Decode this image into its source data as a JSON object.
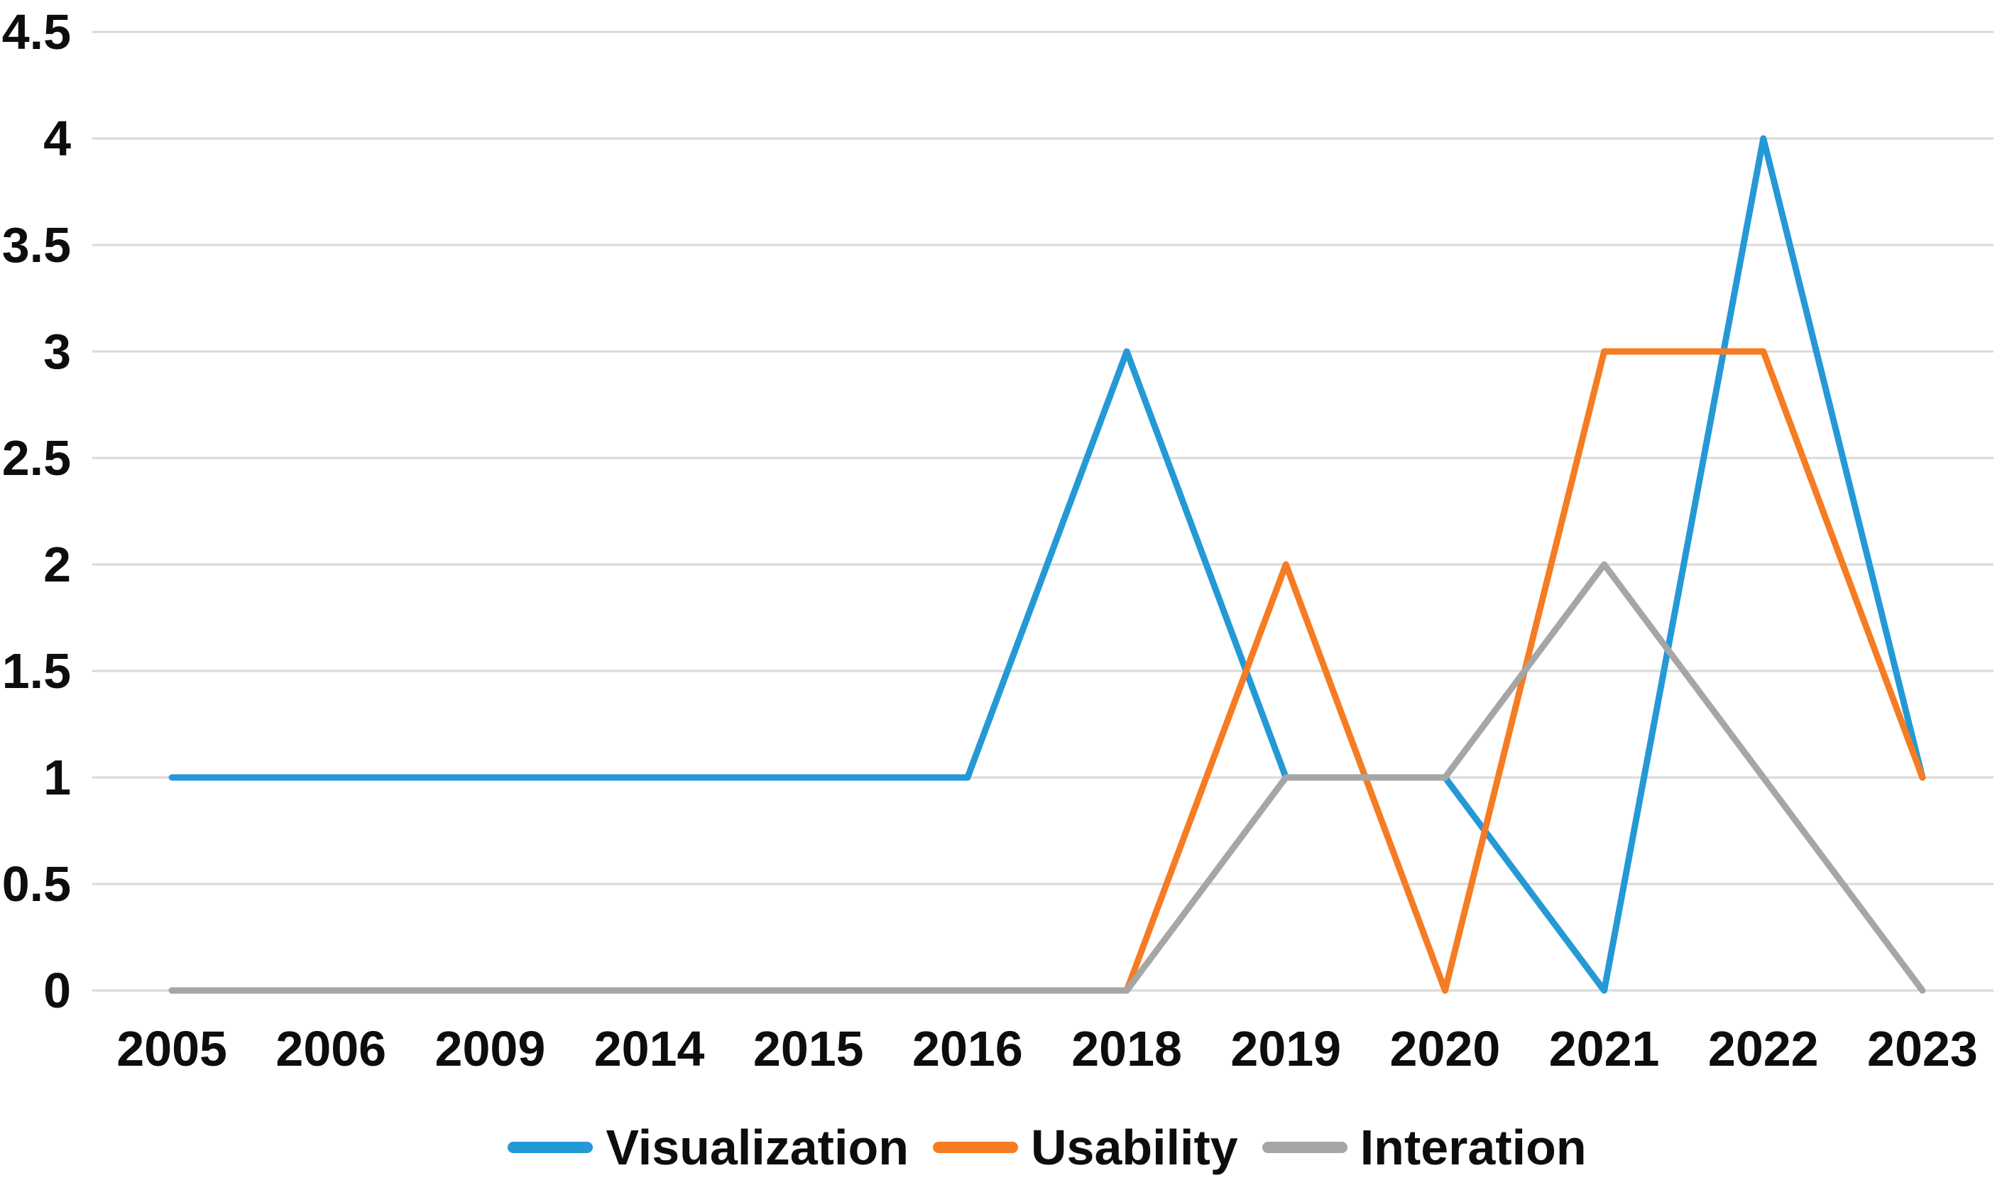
{
  "chart_data": {
    "type": "line",
    "title": "",
    "xlabel": "",
    "ylabel": "",
    "categories": [
      "2005",
      "2006",
      "2009",
      "2014",
      "2015",
      "2016",
      "2018",
      "2019",
      "2020",
      "2021",
      "2022",
      "2023"
    ],
    "series": [
      {
        "name": "Visualization",
        "color": "#2499D6",
        "values": [
          1,
          1,
          1,
          1,
          1,
          1,
          3,
          1,
          1,
          0,
          4,
          1
        ]
      },
      {
        "name": "Usability",
        "color": "#F57C22",
        "values": [
          0,
          0,
          0,
          0,
          0,
          0,
          0,
          2,
          0,
          3,
          3,
          1
        ]
      },
      {
        "name": "Interation",
        "color": "#A6A6A6",
        "values": [
          0,
          0,
          0,
          0,
          0,
          0,
          0,
          1,
          1,
          2,
          1,
          0
        ]
      }
    ],
    "ylim": [
      0,
      4.5
    ],
    "yticks": [
      "0",
      "0.5",
      "1",
      "1.5",
      "2",
      "2.5",
      "3",
      "3.5",
      "4",
      "4.5"
    ],
    "grid": true,
    "legend_position": "bottom",
    "colors": {
      "gridline": "#D9D9D9",
      "text": "#0D0D0D",
      "background": "#FFFFFF"
    }
  }
}
